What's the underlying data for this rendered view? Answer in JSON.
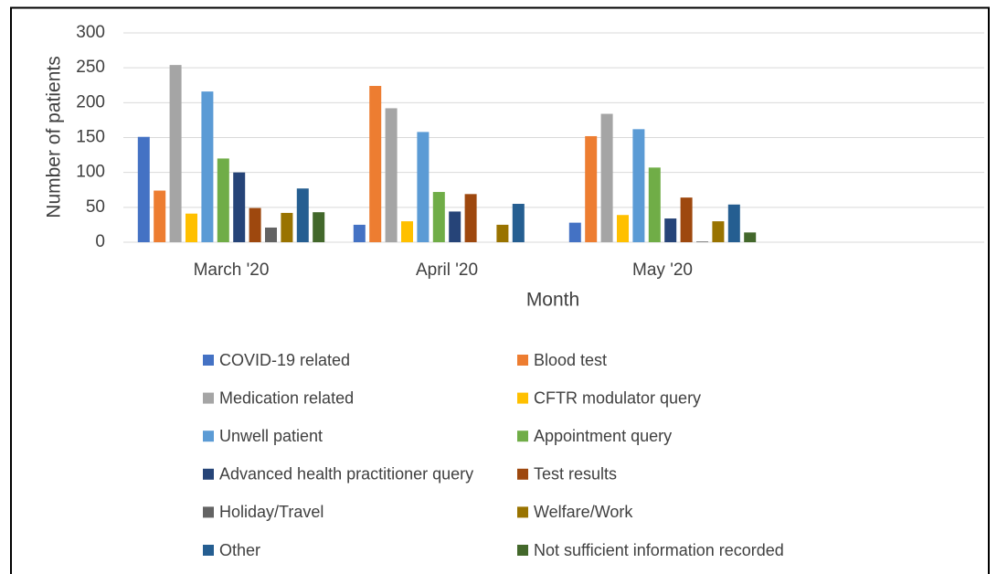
{
  "chart_data": {
    "type": "bar",
    "x_label": "Month",
    "y_label": "Number of patients",
    "categories": [
      "March '20",
      "April '20",
      "May '20",
      null
    ],
    "ylim": [
      0,
      300
    ],
    "yticks": [
      0,
      50,
      100,
      150,
      200,
      250,
      300
    ],
    "grid": true,
    "legend": "bottom",
    "series": [
      {
        "name": "COVID-19 related",
        "color": "#4472c4",
        "values": [
          151,
          25,
          28,
          null
        ]
      },
      {
        "name": "Blood test",
        "color": "#ed7d31",
        "values": [
          74,
          224,
          152,
          null
        ]
      },
      {
        "name": "Medication related",
        "color": "#a5a5a5",
        "values": [
          254,
          192,
          184,
          null
        ]
      },
      {
        "name": "CFTR modulator query",
        "color": "#ffc000",
        "values": [
          41,
          30,
          39,
          null
        ]
      },
      {
        "name": "Unwell patient",
        "color": "#5b9bd5",
        "values": [
          216,
          158,
          162,
          null
        ]
      },
      {
        "name": "Appointment query",
        "color": "#70ad47",
        "values": [
          120,
          72,
          107,
          null
        ]
      },
      {
        "name": "Advanced health practitioner query",
        "color": "#264478",
        "values": [
          100,
          44,
          34,
          null
        ]
      },
      {
        "name": "Test results",
        "color": "#9e480e",
        "values": [
          49,
          69,
          64,
          null
        ]
      },
      {
        "name": "Holiday/Travel",
        "color": "#636363",
        "values": [
          21,
          0,
          1,
          null
        ]
      },
      {
        "name": "Welfare/Work",
        "color": "#997300",
        "values": [
          42,
          25,
          30,
          null
        ]
      },
      {
        "name": "Other",
        "color": "#255e91",
        "values": [
          77,
          55,
          54,
          null
        ]
      },
      {
        "name": "Not sufficient information recorded",
        "color": "#43682b",
        "values": [
          43,
          0,
          14,
          null
        ]
      }
    ]
  }
}
